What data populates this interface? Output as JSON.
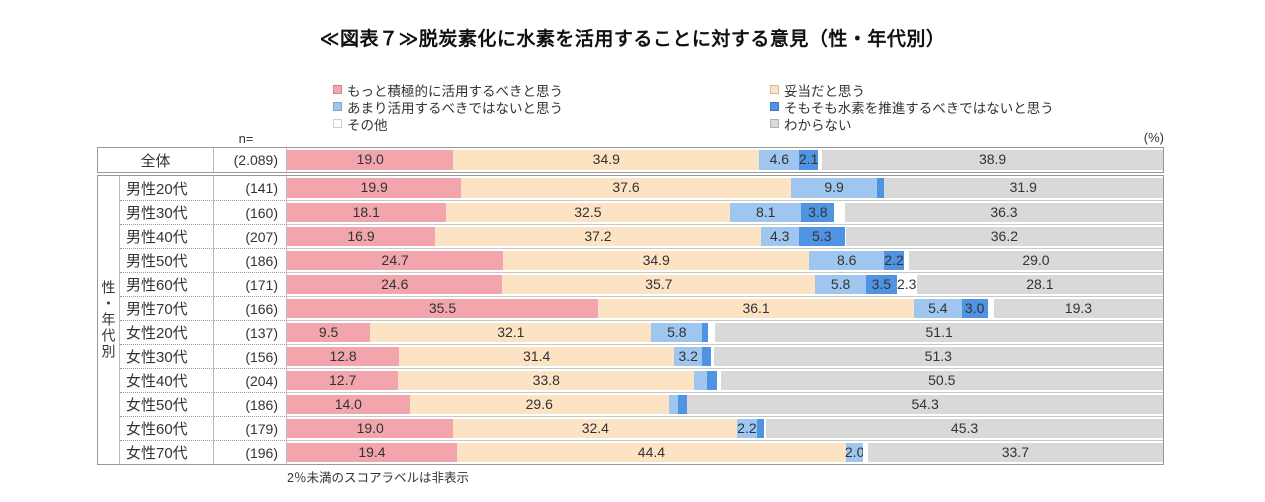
{
  "title": "≪図表７≫脱炭素化に水素を活用することに対する意見（性・年代別）",
  "n_header": "n=",
  "percent_label": "(%)",
  "footnote": "2％未満のスコアラベルは非表示",
  "axis_group_label": "性・年代別",
  "overall_row_label": "全体",
  "colors": {
    "segments": [
      "#F2A5AD",
      "#FBE3C3",
      "#9EC6EF",
      "#5193E3",
      "#FFFFFF",
      "#D9D9D9"
    ],
    "table_border": "#999999",
    "text": "#333333"
  },
  "legend": {
    "left_column_series": [
      0,
      2,
      4
    ],
    "right_column_series": [
      1,
      3,
      5
    ]
  },
  "chart_data": {
    "type": "bar",
    "orientation": "horizontal",
    "stacked": true,
    "value_unit": "%",
    "xlim": [
      0,
      100
    ],
    "label_min_display": 2.0,
    "series_names": [
      "もっと積極的に活用するべきと思う",
      "妥当だと思う",
      "あまり活用するべきではないと思う",
      "そもそも水素を推進するべきではないと思う",
      "その他",
      "わからない"
    ],
    "categories": [
      "全体",
      "男性20代",
      "男性30代",
      "男性40代",
      "男性50代",
      "男性60代",
      "男性70代",
      "女性20代",
      "女性30代",
      "女性40代",
      "女性50代",
      "女性60代",
      "女性70代"
    ],
    "rows": [
      {
        "label": "全体",
        "n": "(2.089)",
        "values": [
          19.0,
          34.9,
          4.6,
          2.1,
          0.5,
          38.9
        ]
      },
      {
        "label": "男性20代",
        "n": "(141)",
        "values": [
          19.9,
          37.6,
          9.9,
          0.7,
          0.0,
          31.9
        ]
      },
      {
        "label": "男性30代",
        "n": "(160)",
        "values": [
          18.1,
          32.5,
          8.1,
          3.8,
          1.2,
          36.3
        ]
      },
      {
        "label": "男性40代",
        "n": "(207)",
        "values": [
          16.9,
          37.2,
          4.3,
          5.3,
          0.1,
          36.2
        ]
      },
      {
        "label": "男性50代",
        "n": "(186)",
        "values": [
          24.7,
          34.9,
          8.6,
          2.2,
          0.6,
          29.0
        ]
      },
      {
        "label": "男性60代",
        "n": "(171)",
        "values": [
          24.6,
          35.7,
          5.8,
          3.5,
          2.3,
          28.1
        ]
      },
      {
        "label": "男性70代",
        "n": "(166)",
        "values": [
          35.5,
          36.1,
          5.4,
          3.0,
          0.7,
          19.3
        ]
      },
      {
        "label": "女性20代",
        "n": "(137)",
        "values": [
          9.5,
          32.1,
          5.8,
          0.7,
          0.8,
          51.1
        ]
      },
      {
        "label": "女性30代",
        "n": "(156)",
        "values": [
          12.8,
          31.4,
          3.2,
          1.0,
          0.3,
          51.3
        ]
      },
      {
        "label": "女性40代",
        "n": "(204)",
        "values": [
          12.7,
          33.8,
          1.5,
          1.1,
          0.4,
          50.5
        ]
      },
      {
        "label": "女性50代",
        "n": "(186)",
        "values": [
          14.0,
          29.6,
          1.0,
          1.1,
          0.0,
          54.3
        ]
      },
      {
        "label": "女性60代",
        "n": "(179)",
        "values": [
          19.0,
          32.4,
          2.2,
          0.8,
          0.3,
          45.3
        ]
      },
      {
        "label": "女性70代",
        "n": "(196)",
        "values": [
          19.4,
          44.4,
          2.0,
          0.0,
          0.5,
          33.7
        ]
      }
    ]
  }
}
